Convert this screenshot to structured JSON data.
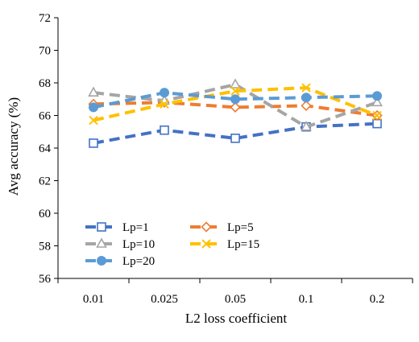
{
  "chart_data": {
    "type": "line",
    "title": "",
    "xlabel": "L2 loss coefficient",
    "ylabel": "Avg accuracy (%)",
    "categories": [
      "0.01",
      "0.025",
      "0.05",
      "0.1",
      "0.2"
    ],
    "ylim": [
      56,
      72
    ],
    "yticks": [
      "56",
      "58",
      "60",
      "62",
      "64",
      "66",
      "68",
      "70",
      "72"
    ],
    "grid": false,
    "legend_placement": "bottom-left",
    "series": [
      {
        "name": "Lp=1",
        "values": [
          64.3,
          65.1,
          64.6,
          65.3,
          65.5
        ],
        "color": "#4472C4",
        "marker": "square-open"
      },
      {
        "name": "Lp=5",
        "values": [
          66.7,
          66.8,
          66.5,
          66.6,
          66.0
        ],
        "color": "#ED7D31",
        "marker": "diamond-open"
      },
      {
        "name": "Lp=10",
        "values": [
          67.4,
          66.9,
          67.9,
          65.3,
          66.8
        ],
        "color": "#A5A5A5",
        "marker": "triangle-open"
      },
      {
        "name": "Lp=15",
        "values": [
          65.7,
          66.7,
          67.5,
          67.7,
          66.0
        ],
        "color": "#FFC000",
        "marker": "x"
      },
      {
        "name": "Lp=20",
        "values": [
          66.5,
          67.4,
          67.0,
          67.1,
          67.2
        ],
        "color": "#5B9BD5",
        "marker": "circle-filled"
      }
    ]
  }
}
